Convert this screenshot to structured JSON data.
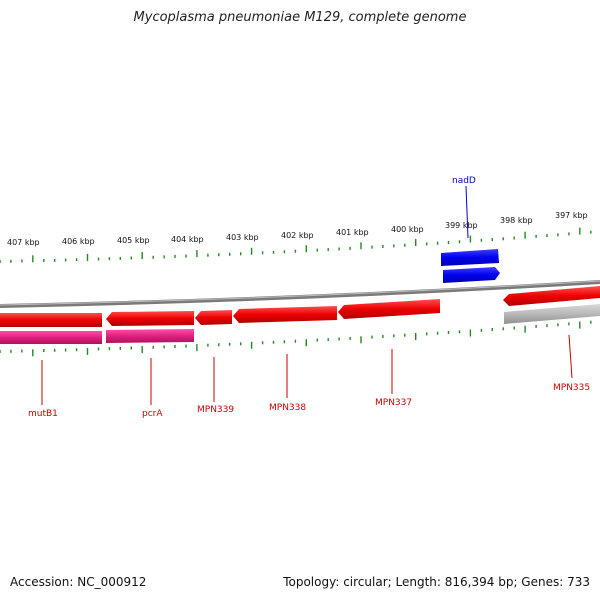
{
  "title": "Mycoplasma pneumoniae M129, complete genome",
  "footer": {
    "accession_label": "Accession:",
    "accession": "NC_000912",
    "topology_label": "Topology:",
    "topology": "circular",
    "length_label": "Length:",
    "length": "816,394 bp",
    "genes_label": "Genes:",
    "genes": "733"
  },
  "scale": {
    "unit": "kbp",
    "labels": [
      "407 kbp",
      "406 kbp",
      "405 kbp",
      "404 kbp",
      "403 kbp",
      "402 kbp",
      "401 kbp",
      "400 kbp",
      "399 kbp",
      "398 kbp",
      "397 kbp"
    ]
  },
  "genes": [
    {
      "name": "mutB1",
      "color": "#cc0000"
    },
    {
      "name": "pcrA",
      "color": "#cc0000"
    },
    {
      "name": "MPN339",
      "color": "#cc0000"
    },
    {
      "name": "MPN338",
      "color": "#cc0000"
    },
    {
      "name": "MPN337",
      "color": "#cc0000"
    },
    {
      "name": "nadD",
      "color": "#0000cc"
    },
    {
      "name": "MPN335",
      "color": "#cc0000"
    }
  ],
  "colors": {
    "cds": "#ee0000",
    "rna": "#e0207f",
    "highlight": "#0000ee",
    "backbone": "#888888",
    "tick": "#228b22"
  }
}
